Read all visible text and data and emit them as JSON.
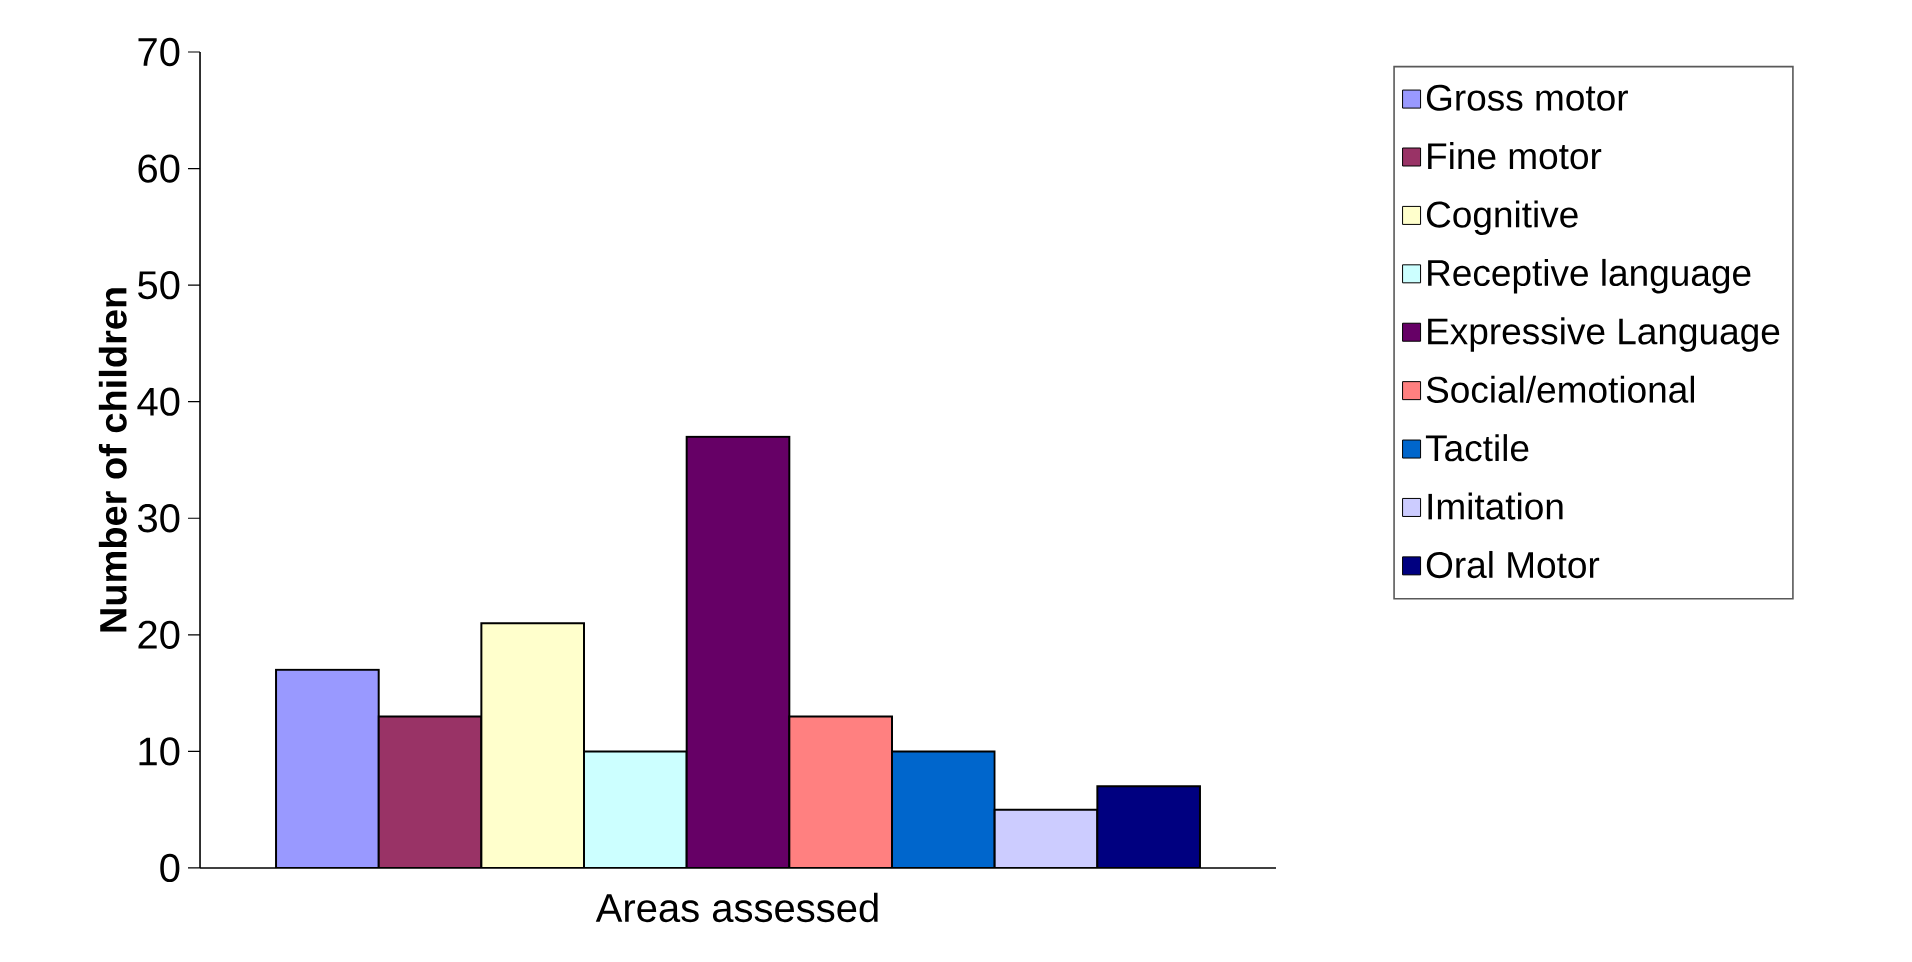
{
  "chart_data": {
    "type": "bar",
    "xlabel": "Areas assessed",
    "ylabel": "Number of children",
    "categories": [
      null
    ],
    "series": [
      {
        "name": "Gross motor",
        "color": "#9999ff",
        "values": [
          17
        ]
      },
      {
        "name": "Fine motor",
        "color": "#993366",
        "values": [
          13
        ]
      },
      {
        "name": "Cognitive",
        "color": "#ffffcc",
        "values": [
          21
        ]
      },
      {
        "name": "Receptive language",
        "color": "#ccffff",
        "values": [
          10
        ]
      },
      {
        "name": "Expressive Language",
        "color": "#660066",
        "values": [
          37
        ]
      },
      {
        "name": "Social/emotional",
        "color": "#ff8080",
        "values": [
          13
        ]
      },
      {
        "name": "Tactile",
        "color": "#0066cc",
        "values": [
          10
        ]
      },
      {
        "name": "Imitation",
        "color": "#ccccff",
        "values": [
          5
        ]
      },
      {
        "name": "Oral Motor",
        "color": "#000080",
        "values": [
          7
        ]
      }
    ],
    "ylim": [
      0,
      70
    ],
    "yticks": [
      0,
      10,
      20,
      30,
      40,
      50,
      60,
      70
    ],
    "legend": "right"
  }
}
